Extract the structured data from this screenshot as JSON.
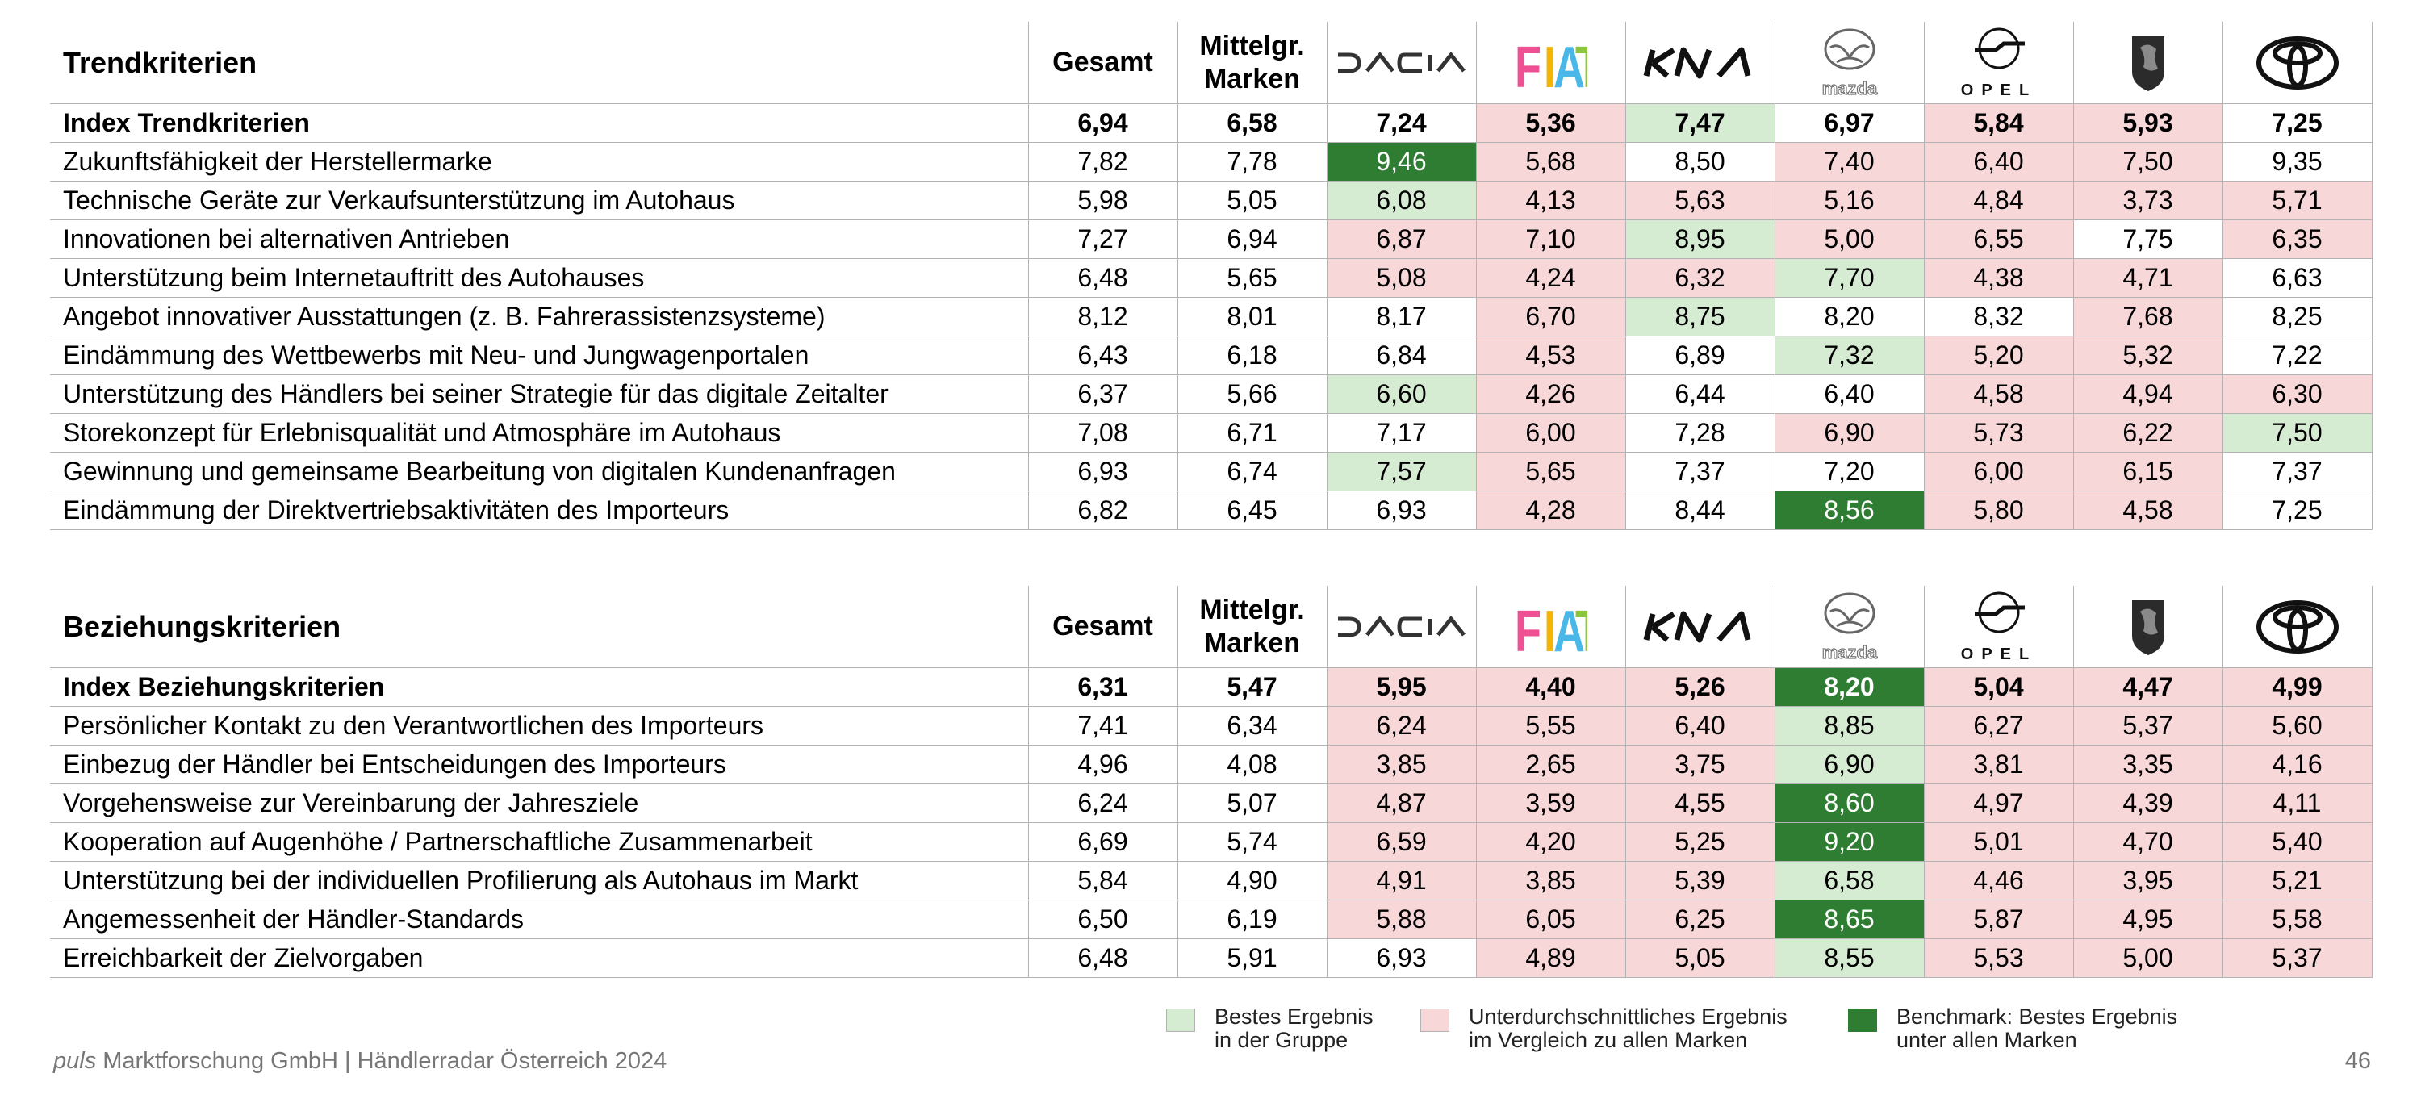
{
  "colors": {
    "best": "#d6ecd2",
    "below": "#f8d7d9",
    "benchmark": "#2e7d32"
  },
  "headers": {
    "gesamt": "Gesamt",
    "mittelgr": "Mittelgr.\nMarken",
    "brands": [
      {
        "name": "Dacia",
        "logo": "dacia-logo"
      },
      {
        "name": "Fiat",
        "logo": "fiat-logo"
      },
      {
        "name": "Kia",
        "logo": "kia-logo"
      },
      {
        "name": "Mazda",
        "logo": "mazda-logo"
      },
      {
        "name": "Opel",
        "logo": "opel-logo"
      },
      {
        "name": "Peugeot",
        "logo": "peugeot-logo"
      },
      {
        "name": "Toyota",
        "logo": "toyota-logo"
      }
    ]
  },
  "trend": {
    "title": "Trendkriterien",
    "rows": [
      {
        "label": "Index Trendkriterien",
        "index": true,
        "values": [
          "6,94",
          "6,58",
          "7,24",
          "5,36",
          "7,47",
          "6,97",
          "5,84",
          "5,93",
          "7,25"
        ],
        "status": [
          "",
          "",
          "",
          "below",
          "best",
          "",
          "below",
          "below",
          ""
        ]
      },
      {
        "label": "Zukunftsfähigkeit der Herstellermarke",
        "values": [
          "7,82",
          "7,78",
          "9,46",
          "5,68",
          "8,50",
          "7,40",
          "6,40",
          "7,50",
          "9,35"
        ],
        "status": [
          "",
          "",
          "bench",
          "below",
          "",
          "below",
          "below",
          "below",
          ""
        ]
      },
      {
        "label": "Technische Geräte zur Verkaufsunterstützung im Autohaus",
        "values": [
          "5,98",
          "5,05",
          "6,08",
          "4,13",
          "5,63",
          "5,16",
          "4,84",
          "3,73",
          "5,71"
        ],
        "status": [
          "",
          "",
          "best",
          "below",
          "below",
          "below",
          "below",
          "below",
          "below"
        ]
      },
      {
        "label": "Innovationen bei alternativen Antrieben",
        "values": [
          "7,27",
          "6,94",
          "6,87",
          "7,10",
          "8,95",
          "5,00",
          "6,55",
          "7,75",
          "6,35"
        ],
        "status": [
          "",
          "",
          "below",
          "below",
          "best",
          "below",
          "below",
          "",
          "below"
        ]
      },
      {
        "label": "Unterstützung beim Internetauftritt des Autohauses",
        "values": [
          "6,48",
          "5,65",
          "5,08",
          "4,24",
          "6,32",
          "7,70",
          "4,38",
          "4,71",
          "6,63"
        ],
        "status": [
          "",
          "",
          "below",
          "below",
          "below",
          "best",
          "below",
          "below",
          ""
        ]
      },
      {
        "label": "Angebot innovativer Ausstattungen (z. B. Fahrerassistenzsysteme)",
        "values": [
          "8,12",
          "8,01",
          "8,17",
          "6,70",
          "8,75",
          "8,20",
          "8,32",
          "7,68",
          "8,25"
        ],
        "status": [
          "",
          "",
          "",
          "below",
          "best",
          "",
          "",
          "below",
          ""
        ]
      },
      {
        "label": "Eindämmung des Wettbewerbs mit Neu- und Jungwagenportalen",
        "values": [
          "6,43",
          "6,18",
          "6,84",
          "4,53",
          "6,89",
          "7,32",
          "5,20",
          "5,32",
          "7,22"
        ],
        "status": [
          "",
          "",
          "",
          "below",
          "",
          "best",
          "below",
          "below",
          ""
        ]
      },
      {
        "label": "Unterstützung des Händlers bei seiner Strategie für das digitale Zeitalter",
        "values": [
          "6,37",
          "5,66",
          "6,60",
          "4,26",
          "6,44",
          "6,40",
          "4,58",
          "4,94",
          "6,30"
        ],
        "status": [
          "",
          "",
          "best",
          "below",
          "",
          "",
          "below",
          "below",
          "below"
        ]
      },
      {
        "label": "Storekonzept für Erlebnisqualität und Atmosphäre im Autohaus",
        "values": [
          "7,08",
          "6,71",
          "7,17",
          "6,00",
          "7,28",
          "6,90",
          "5,73",
          "6,22",
          "7,50"
        ],
        "status": [
          "",
          "",
          "",
          "below",
          "",
          "below",
          "below",
          "below",
          "best"
        ]
      },
      {
        "label": "Gewinnung und gemeinsame Bearbeitung von digitalen Kundenanfragen",
        "values": [
          "6,93",
          "6,74",
          "7,57",
          "5,65",
          "7,37",
          "7,20",
          "6,00",
          "6,15",
          "7,37"
        ],
        "status": [
          "",
          "",
          "best",
          "below",
          "",
          "",
          "below",
          "below",
          ""
        ]
      },
      {
        "label": "Eindämmung der Direktvertriebsaktivitäten des Importeurs",
        "values": [
          "6,82",
          "6,45",
          "6,93",
          "4,28",
          "8,44",
          "8,56",
          "5,80",
          "4,58",
          "7,25"
        ],
        "status": [
          "",
          "",
          "",
          "below",
          "",
          "bench",
          "below",
          "below",
          ""
        ]
      }
    ]
  },
  "beziehung": {
    "title": "Beziehungskriterien",
    "rows": [
      {
        "label": "Index Beziehungskriterien",
        "index": true,
        "values": [
          "6,31",
          "5,47",
          "5,95",
          "4,40",
          "5,26",
          "8,20",
          "5,04",
          "4,47",
          "4,99"
        ],
        "status": [
          "",
          "",
          "below",
          "below",
          "below",
          "bench",
          "below",
          "below",
          "below"
        ]
      },
      {
        "label": "Persönlicher Kontakt zu den Verantwortlichen des Importeurs",
        "values": [
          "7,41",
          "6,34",
          "6,24",
          "5,55",
          "6,40",
          "8,85",
          "6,27",
          "5,37",
          "5,60"
        ],
        "status": [
          "",
          "",
          "below",
          "below",
          "below",
          "best",
          "below",
          "below",
          "below"
        ]
      },
      {
        "label": "Einbezug der Händler bei Entscheidungen des Importeurs",
        "values": [
          "4,96",
          "4,08",
          "3,85",
          "2,65",
          "3,75",
          "6,90",
          "3,81",
          "3,35",
          "4,16"
        ],
        "status": [
          "",
          "",
          "below",
          "below",
          "below",
          "best",
          "below",
          "below",
          "below"
        ]
      },
      {
        "label": "Vorgehensweise zur Vereinbarung der Jahresziele",
        "values": [
          "6,24",
          "5,07",
          "4,87",
          "3,59",
          "4,55",
          "8,60",
          "4,97",
          "4,39",
          "4,11"
        ],
        "status": [
          "",
          "",
          "below",
          "below",
          "below",
          "bench",
          "below",
          "below",
          "below"
        ]
      },
      {
        "label": "Kooperation auf Augenhöhe / Partnerschaftliche Zusammenarbeit",
        "values": [
          "6,69",
          "5,74",
          "6,59",
          "4,20",
          "5,25",
          "9,20",
          "5,01",
          "4,70",
          "5,40"
        ],
        "status": [
          "",
          "",
          "below",
          "below",
          "below",
          "bench",
          "below",
          "below",
          "below"
        ]
      },
      {
        "label": "Unterstützung bei der individuellen Profilierung als Autohaus im Markt",
        "values": [
          "5,84",
          "4,90",
          "4,91",
          "3,85",
          "5,39",
          "6,58",
          "4,46",
          "3,95",
          "5,21"
        ],
        "status": [
          "",
          "",
          "below",
          "below",
          "below",
          "best",
          "below",
          "below",
          "below"
        ]
      },
      {
        "label": "Angemessenheit der Händler-Standards",
        "values": [
          "6,50",
          "6,19",
          "5,88",
          "6,05",
          "6,25",
          "8,65",
          "5,87",
          "4,95",
          "5,58"
        ],
        "status": [
          "",
          "",
          "below",
          "below",
          "below",
          "bench",
          "below",
          "below",
          "below"
        ]
      },
      {
        "label": "Erreichbarkeit der Zielvorgaben",
        "values": [
          "6,48",
          "5,91",
          "6,93",
          "4,89",
          "5,05",
          "8,55",
          "5,53",
          "5,00",
          "5,37"
        ],
        "status": [
          "",
          "",
          "",
          "below",
          "below",
          "best",
          "below",
          "below",
          "below"
        ]
      }
    ]
  },
  "legend": [
    {
      "key": "best",
      "text": "Bestes Ergebnis\nin der Gruppe"
    },
    {
      "key": "below",
      "text": "Unterdurchschnittliches Ergebnis\nim Vergleich zu allen Marken"
    },
    {
      "key": "benchmark",
      "text": "Benchmark: Bestes Ergebnis\nunter allen Marken"
    }
  ],
  "footer": {
    "company_italic": "puls",
    "rest": " Marktforschung GmbH | Händlerradar Österreich 2024"
  },
  "page_number": "46"
}
